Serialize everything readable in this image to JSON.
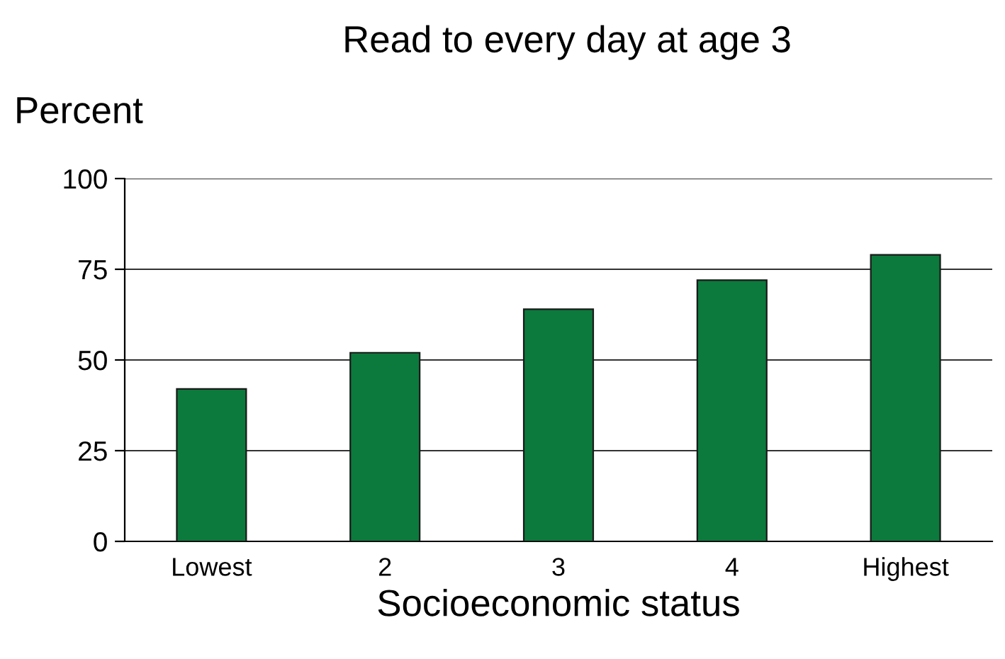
{
  "chart_data": {
    "type": "bar",
    "title": "Read to every day at age 3",
    "ylabel": "Percent",
    "xlabel": "Socioeconomic status",
    "categories": [
      "Lowest",
      "2",
      "3",
      "4",
      "Highest"
    ],
    "values": [
      42,
      52,
      64,
      72,
      79
    ],
    "color": "#0b7a3c",
    "ylim": [
      0,
      100
    ],
    "yticks": [
      0,
      25,
      50,
      75,
      100
    ],
    "grid": "y"
  }
}
